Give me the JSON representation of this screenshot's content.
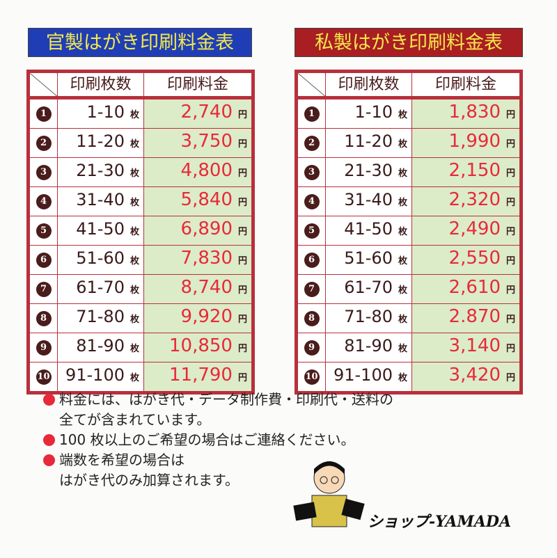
{
  "left_table": {
    "title": "官製はがき印刷料金表",
    "col_count": "印刷枚数",
    "col_price": "印刷料金",
    "rows": [
      {
        "no": "1",
        "range": "1-10",
        "unit": "枚",
        "price": "2,740",
        "yen": "円"
      },
      {
        "no": "2",
        "range": "11-20",
        "unit": "枚",
        "price": "3,750",
        "yen": "円"
      },
      {
        "no": "3",
        "range": "21-30",
        "unit": "枚",
        "price": "4,800",
        "yen": "円"
      },
      {
        "no": "4",
        "range": "31-40",
        "unit": "枚",
        "price": "5,840",
        "yen": "円"
      },
      {
        "no": "5",
        "range": "41-50",
        "unit": "枚",
        "price": "6,890",
        "yen": "円"
      },
      {
        "no": "6",
        "range": "51-60",
        "unit": "枚",
        "price": "7,830",
        "yen": "円"
      },
      {
        "no": "7",
        "range": "61-70",
        "unit": "枚",
        "price": "8,740",
        "yen": "円"
      },
      {
        "no": "8",
        "range": "71-80",
        "unit": "枚",
        "price": "9,920",
        "yen": "円"
      },
      {
        "no": "9",
        "range": "81-90",
        "unit": "枚",
        "price": "10,850",
        "yen": "円"
      },
      {
        "no": "10",
        "range": "91-100",
        "unit": "枚",
        "price": "11,790",
        "yen": "円"
      }
    ]
  },
  "right_table": {
    "title": "私製はがき印刷料金表",
    "col_count": "印刷枚数",
    "col_price": "印刷料金",
    "rows": [
      {
        "no": "1",
        "range": "1-10",
        "unit": "枚",
        "price": "1,830",
        "yen": "円"
      },
      {
        "no": "2",
        "range": "11-20",
        "unit": "枚",
        "price": "1,990",
        "yen": "円"
      },
      {
        "no": "3",
        "range": "21-30",
        "unit": "枚",
        "price": "2,150",
        "yen": "円"
      },
      {
        "no": "4",
        "range": "31-40",
        "unit": "枚",
        "price": "2,320",
        "yen": "円"
      },
      {
        "no": "5",
        "range": "41-50",
        "unit": "枚",
        "price": "2,490",
        "yen": "円"
      },
      {
        "no": "6",
        "range": "51-60",
        "unit": "枚",
        "price": "2,550",
        "yen": "円"
      },
      {
        "no": "7",
        "range": "61-70",
        "unit": "枚",
        "price": "2,610",
        "yen": "円"
      },
      {
        "no": "8",
        "range": "71-80",
        "unit": "枚",
        "price": "2.870",
        "yen": "円"
      },
      {
        "no": "9",
        "range": "81-90",
        "unit": "枚",
        "price": "3,140",
        "yen": "円"
      },
      {
        "no": "10",
        "range": "91-100",
        "unit": "枚",
        "price": "3,420",
        "yen": "円"
      }
    ]
  },
  "notes": [
    {
      "line1": "料金には、はがき代・データ制作費・印刷代・送料の",
      "line2": "全てが含まれています。"
    },
    {
      "line1": "100 枚以上のご希望の場合はご連絡ください。",
      "line2": ""
    },
    {
      "line1": "端数を希望の場合は",
      "line2": "はがき代のみ加算されます。"
    }
  ],
  "shop_name": "ショップ-YAMADA",
  "colors": {
    "left_title_bg": "#1f3eb5",
    "right_title_bg": "#a81e22",
    "title_text": "#f5e84a",
    "border": "#b8303c",
    "price_text": "#e8293a",
    "price_bg": "#dcebc8"
  }
}
